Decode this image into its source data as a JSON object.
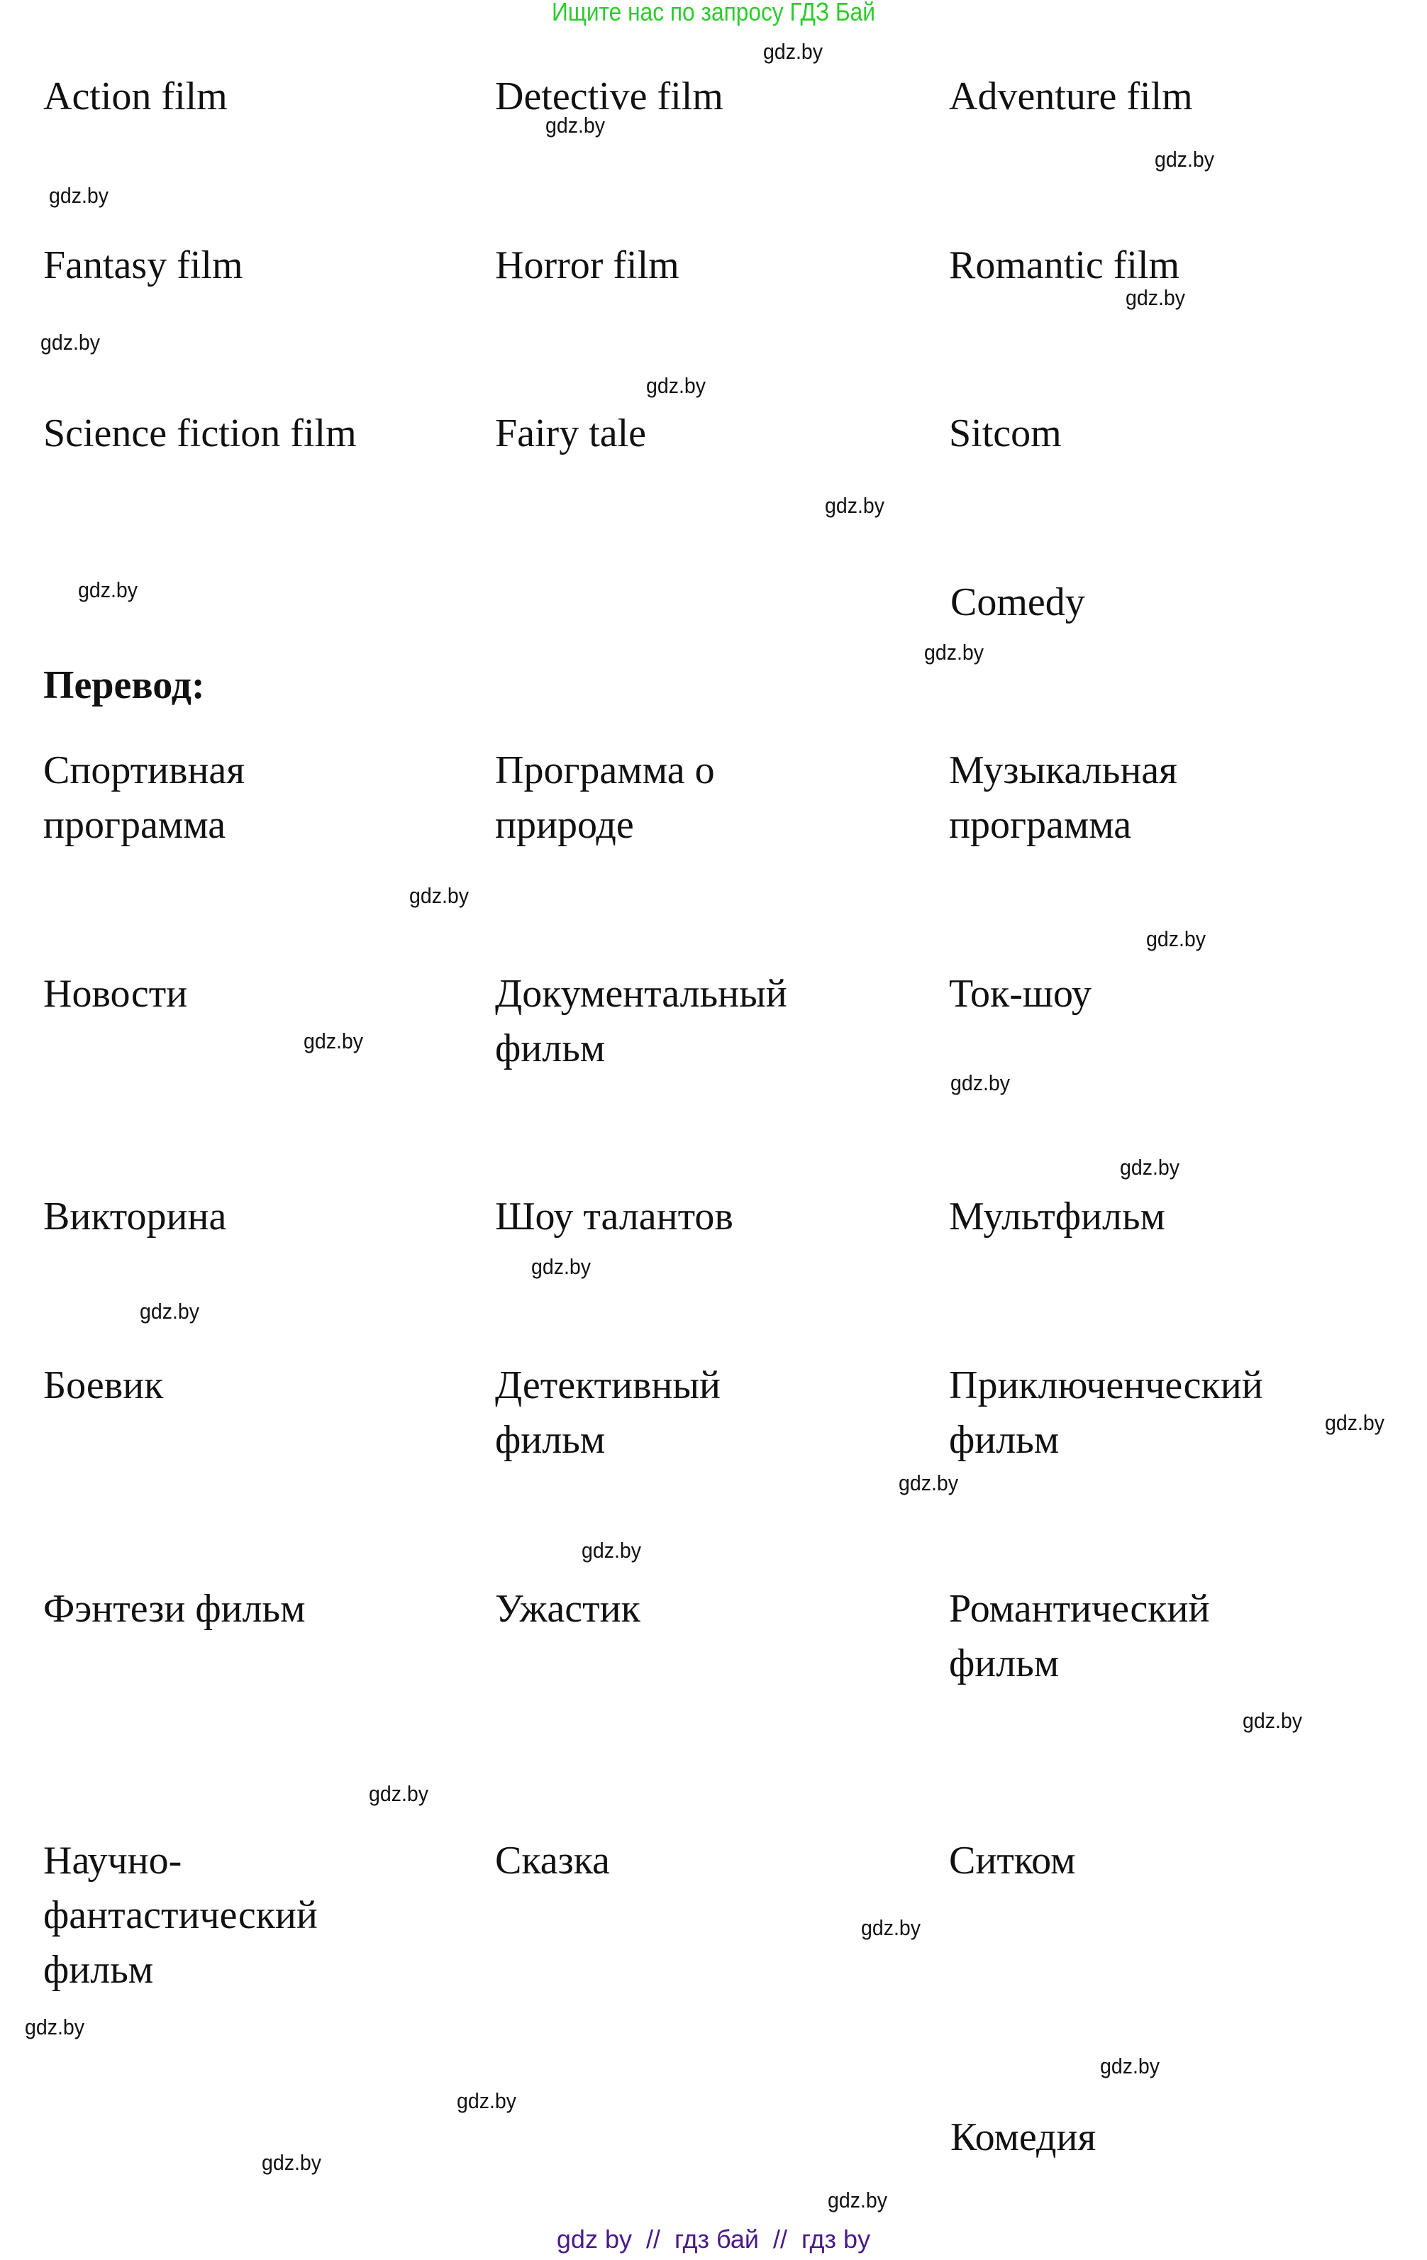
{
  "header": {
    "banner": "Ищите нас по запросу ГДЗ Бай"
  },
  "watermark": "gdz.by",
  "english": [
    "Action film",
    "Detective film",
    "Adventure film",
    "Fantasy film",
    "Horror film",
    "Romantic film",
    "Science fiction film",
    "Fairy tale",
    "Sitcom",
    "Comedy"
  ],
  "translation_heading": "Перевод:",
  "russian": [
    "Спортивная\nпрограмма",
    "Программа о\nприроде",
    "Музыкальная\nпрограмма",
    "Новости",
    "Документальный\nфильм",
    "Ток-шоу",
    "Викторина",
    "Шоу талантов",
    "Мультфильм",
    "Боевик",
    "Детективный\nфильм",
    "Приключенческий\nфильм",
    "Фэнтези фильм",
    "Ужастик",
    "Романтический\nфильм",
    "Научно-\nфантастический\nфильм",
    "Сказка",
    "Ситком",
    "Комедия"
  ],
  "footer": {
    "link1": "gdz by",
    "sep": "//",
    "link2": "гдз бай",
    "link3": "гдз by"
  }
}
